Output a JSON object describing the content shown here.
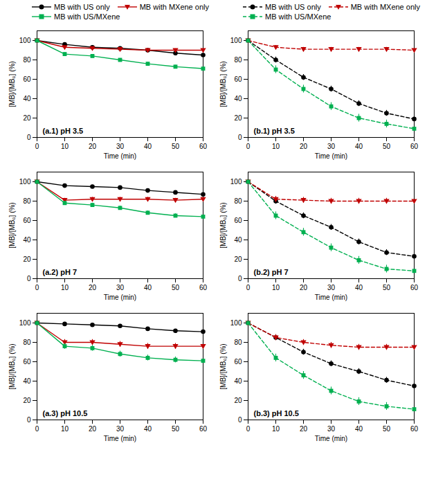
{
  "chart_data": [
    {
      "type": "line",
      "annotation": "(a.1) pH 3.5",
      "xlabel": "Time (min)",
      "ylabel": "[MB]/[MB₀] (%)",
      "x": [
        0,
        10,
        20,
        30,
        40,
        50,
        60
      ],
      "xlim": [
        0,
        60
      ],
      "ylim": [
        0,
        110
      ],
      "xticks": [
        0,
        10,
        20,
        30,
        40,
        50,
        60
      ],
      "yticks": [
        0,
        20,
        40,
        60,
        80,
        100
      ],
      "legend": "top",
      "series": [
        {
          "name": "MB with US only",
          "color": "#000000",
          "marker": "circle",
          "line_style": "solid",
          "values": [
            100,
            96,
            93,
            92,
            90,
            87,
            85
          ],
          "errors": [
            0,
            1.5,
            1.5,
            1.5,
            1.5,
            1.5,
            1.5
          ]
        },
        {
          "name": "MB with MXene only",
          "color": "#c00000",
          "marker": "triangle_down",
          "line_style": "solid",
          "values": [
            100,
            93,
            92,
            91,
            90,
            90,
            90
          ],
          "errors": [
            0,
            1.5,
            1.5,
            1.5,
            1.5,
            1.5,
            1.5
          ]
        },
        {
          "name": "MB with US/MXene",
          "color": "#00b050",
          "marker": "square",
          "line_style": "solid",
          "values": [
            100,
            86,
            84,
            80,
            76,
            73,
            71
          ],
          "errors": [
            0,
            1.5,
            1.5,
            1.5,
            1.5,
            1.5,
            1.5
          ]
        }
      ]
    },
    {
      "type": "line",
      "annotation": "(b.1) pH 3.5",
      "xlabel": "Time (min)",
      "ylabel": "[MB]/[MB₀] (%)",
      "x": [
        0,
        10,
        20,
        30,
        40,
        50,
        60
      ],
      "xlim": [
        0,
        60
      ],
      "ylim": [
        0,
        110
      ],
      "xticks": [
        0,
        10,
        20,
        30,
        40,
        50,
        60
      ],
      "yticks": [
        0,
        20,
        40,
        60,
        80,
        100
      ],
      "legend": "top",
      "series": [
        {
          "name": "MB with US only",
          "color": "#000000",
          "marker": "circle",
          "line_style": "dashed",
          "values": [
            100,
            80,
            62,
            50,
            35,
            25,
            19
          ],
          "errors": [
            0,
            3,
            3,
            3,
            3,
            3,
            3
          ]
        },
        {
          "name": "MB with MXene only",
          "color": "#c00000",
          "marker": "triangle_down",
          "line_style": "dashed",
          "values": [
            100,
            93,
            91,
            91,
            91,
            91,
            90
          ],
          "errors": [
            0,
            2,
            2,
            2,
            2,
            2,
            2
          ]
        },
        {
          "name": "MB with US/MXene",
          "color": "#00b050",
          "marker": "square",
          "line_style": "dashed",
          "values": [
            100,
            70,
            50,
            32,
            20,
            14,
            9
          ],
          "errors": [
            0,
            4,
            4,
            4,
            4,
            4,
            4
          ]
        }
      ]
    },
    {
      "type": "line",
      "annotation": "(a.2) pH 7",
      "xlabel": "Time (min)",
      "ylabel": "[MB]/[MB₀] (%)",
      "x": [
        0,
        10,
        20,
        30,
        40,
        50,
        60
      ],
      "xlim": [
        0,
        60
      ],
      "ylim": [
        0,
        110
      ],
      "xticks": [
        0,
        10,
        20,
        30,
        40,
        50,
        60
      ],
      "yticks": [
        0,
        20,
        40,
        60,
        80,
        100
      ],
      "series": [
        {
          "name": "MB with US only",
          "color": "#000000",
          "marker": "circle",
          "line_style": "solid",
          "values": [
            100,
            96,
            95,
            94,
            91,
            89,
            87
          ],
          "errors": [
            0,
            1.5,
            1.5,
            1.5,
            1.5,
            1.5,
            1.5
          ]
        },
        {
          "name": "MB with MXene only",
          "color": "#c00000",
          "marker": "triangle_down",
          "line_style": "solid",
          "values": [
            100,
            81,
            82,
            82,
            82,
            81,
            82
          ],
          "errors": [
            0,
            2,
            2,
            2,
            2,
            2,
            2
          ]
        },
        {
          "name": "MB with US/MXene",
          "color": "#00b050",
          "marker": "square",
          "line_style": "solid",
          "values": [
            100,
            78,
            76,
            73,
            68,
            65,
            64
          ],
          "errors": [
            0,
            2,
            2,
            2,
            2,
            2,
            2
          ]
        }
      ]
    },
    {
      "type": "line",
      "annotation": "(b.2) pH 7",
      "xlabel": "Time (min)",
      "ylabel": "[MB]/[MB₀] (%)",
      "x": [
        0,
        10,
        20,
        30,
        40,
        50,
        60
      ],
      "xlim": [
        0,
        60
      ],
      "ylim": [
        0,
        110
      ],
      "xticks": [
        0,
        10,
        20,
        30,
        40,
        50,
        60
      ],
      "yticks": [
        0,
        20,
        40,
        60,
        80,
        100
      ],
      "series": [
        {
          "name": "MB with US only",
          "color": "#000000",
          "marker": "circle",
          "line_style": "dashed",
          "values": [
            100,
            80,
            65,
            53,
            38,
            27,
            23
          ],
          "errors": [
            0,
            3,
            3,
            3,
            3,
            3,
            3
          ]
        },
        {
          "name": "MB with MXene only",
          "color": "#c00000",
          "marker": "triangle_down",
          "line_style": "dashed",
          "values": [
            100,
            82,
            81,
            80,
            80,
            80,
            80
          ],
          "errors": [
            0,
            3,
            3,
            3,
            3,
            3,
            3
          ]
        },
        {
          "name": "MB with US/MXene",
          "color": "#00b050",
          "marker": "square",
          "line_style": "dashed",
          "values": [
            100,
            65,
            48,
            32,
            19,
            10,
            8
          ],
          "errors": [
            0,
            4,
            4,
            4,
            4,
            4,
            4
          ]
        }
      ]
    },
    {
      "type": "line",
      "annotation": "(a.3) pH 10.5",
      "xlabel": "Time (min)",
      "ylabel": "[MB]/[MB₀] (%)",
      "x": [
        0,
        10,
        20,
        30,
        40,
        50,
        60
      ],
      "xlim": [
        0,
        60
      ],
      "ylim": [
        0,
        110
      ],
      "xticks": [
        0,
        10,
        20,
        30,
        40,
        50,
        60
      ],
      "yticks": [
        0,
        20,
        40,
        60,
        80,
        100
      ],
      "series": [
        {
          "name": "MB with US only",
          "color": "#000000",
          "marker": "circle",
          "line_style": "solid",
          "values": [
            100,
            99,
            98,
            97,
            94,
            92,
            91
          ],
          "errors": [
            0,
            1,
            1,
            1,
            1,
            1,
            1
          ]
        },
        {
          "name": "MB with MXene only",
          "color": "#c00000",
          "marker": "triangle_down",
          "line_style": "solid",
          "values": [
            100,
            80,
            80,
            78,
            76,
            76,
            76
          ],
          "errors": [
            0,
            3,
            3,
            3,
            3,
            3,
            3
          ]
        },
        {
          "name": "MB with US/MXene",
          "color": "#00b050",
          "marker": "square",
          "line_style": "solid",
          "values": [
            100,
            76,
            74,
            68,
            64,
            62,
            61
          ],
          "errors": [
            0,
            3,
            3,
            3,
            3,
            3,
            3
          ]
        }
      ]
    },
    {
      "type": "line",
      "annotation": "(b.3) pH 10.5",
      "xlabel": "Time (min)",
      "ylabel": "[MB]/[MB₀] (%)",
      "x": [
        0,
        10,
        20,
        30,
        40,
        50,
        60
      ],
      "xlim": [
        0,
        60
      ],
      "ylim": [
        0,
        110
      ],
      "xticks": [
        0,
        10,
        20,
        30,
        40,
        50,
        60
      ],
      "yticks": [
        0,
        20,
        40,
        60,
        80,
        100
      ],
      "series": [
        {
          "name": "MB with US only",
          "color": "#000000",
          "marker": "circle",
          "line_style": "dashed",
          "values": [
            100,
            85,
            70,
            58,
            50,
            41,
            35
          ],
          "errors": [
            0,
            3,
            3,
            3,
            3,
            3,
            3
          ]
        },
        {
          "name": "MB with MXene only",
          "color": "#c00000",
          "marker": "triangle_down",
          "line_style": "dashed",
          "values": [
            100,
            85,
            80,
            77,
            75,
            75,
            75
          ],
          "errors": [
            0,
            3,
            3,
            3,
            3,
            3,
            3
          ]
        },
        {
          "name": "MB with US/MXene",
          "color": "#00b050",
          "marker": "square",
          "line_style": "dashed",
          "values": [
            100,
            64,
            46,
            30,
            19,
            14,
            11
          ],
          "errors": [
            0,
            4,
            4,
            4,
            4,
            4,
            4
          ]
        }
      ]
    }
  ]
}
